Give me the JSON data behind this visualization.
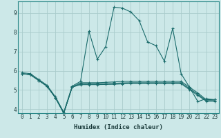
{
  "xlabel": "Humidex (Indice chaleur)",
  "xlim": [
    -0.5,
    23.5
  ],
  "ylim": [
    3.8,
    9.6
  ],
  "yticks": [
    4,
    5,
    6,
    7,
    8,
    9
  ],
  "xticks": [
    0,
    1,
    2,
    3,
    4,
    5,
    6,
    7,
    8,
    9,
    10,
    11,
    12,
    13,
    14,
    15,
    16,
    17,
    18,
    19,
    20,
    21,
    22,
    23
  ],
  "bg_color": "#cce8e8",
  "grid_color": "#aacccc",
  "line_color": "#1a6b6b",
  "lines": [
    {
      "x": [
        0,
        1,
        2,
        3,
        4,
        5,
        6,
        7,
        8,
        9,
        10,
        11,
        12,
        13,
        14,
        15,
        16,
        17,
        18,
        19,
        20,
        21,
        22,
        23
      ],
      "y": [
        5.9,
        5.85,
        5.55,
        5.25,
        4.65,
        3.85,
        5.2,
        5.45,
        8.05,
        6.6,
        7.25,
        9.3,
        9.25,
        9.05,
        8.6,
        7.5,
        7.3,
        6.5,
        8.2,
        5.85,
        5.15,
        4.4,
        4.55,
        4.5
      ]
    },
    {
      "x": [
        0,
        1,
        2,
        3,
        4,
        5,
        6,
        7,
        8,
        9,
        10,
        11,
        12,
        13,
        14,
        15,
        16,
        17,
        18,
        19,
        20,
        21,
        22,
        23
      ],
      "y": [
        5.85,
        5.8,
        5.5,
        5.2,
        4.6,
        3.8,
        5.15,
        5.38,
        5.38,
        5.38,
        5.4,
        5.42,
        5.45,
        5.45,
        5.45,
        5.45,
        5.45,
        5.45,
        5.45,
        5.45,
        5.15,
        4.85,
        4.5,
        4.5
      ]
    },
    {
      "x": [
        0,
        1,
        2,
        3,
        4,
        5,
        6,
        7,
        8,
        9,
        10,
        11,
        12,
        13,
        14,
        15,
        16,
        17,
        18,
        19,
        20,
        21,
        22,
        23
      ],
      "y": [
        5.85,
        5.8,
        5.5,
        5.2,
        4.6,
        3.8,
        5.15,
        5.32,
        5.32,
        5.32,
        5.33,
        5.35,
        5.37,
        5.38,
        5.38,
        5.38,
        5.38,
        5.38,
        5.38,
        5.38,
        5.08,
        4.78,
        4.45,
        4.45
      ]
    },
    {
      "x": [
        0,
        1,
        2,
        3,
        4,
        5,
        6,
        7,
        8,
        9,
        10,
        11,
        12,
        13,
        14,
        15,
        16,
        17,
        18,
        19,
        20,
        21,
        22,
        23
      ],
      "y": [
        5.85,
        5.8,
        5.5,
        5.2,
        4.6,
        3.8,
        5.15,
        5.28,
        5.28,
        5.28,
        5.29,
        5.3,
        5.32,
        5.33,
        5.33,
        5.33,
        5.33,
        5.33,
        5.33,
        5.33,
        5.02,
        4.72,
        4.42,
        4.42
      ]
    }
  ]
}
